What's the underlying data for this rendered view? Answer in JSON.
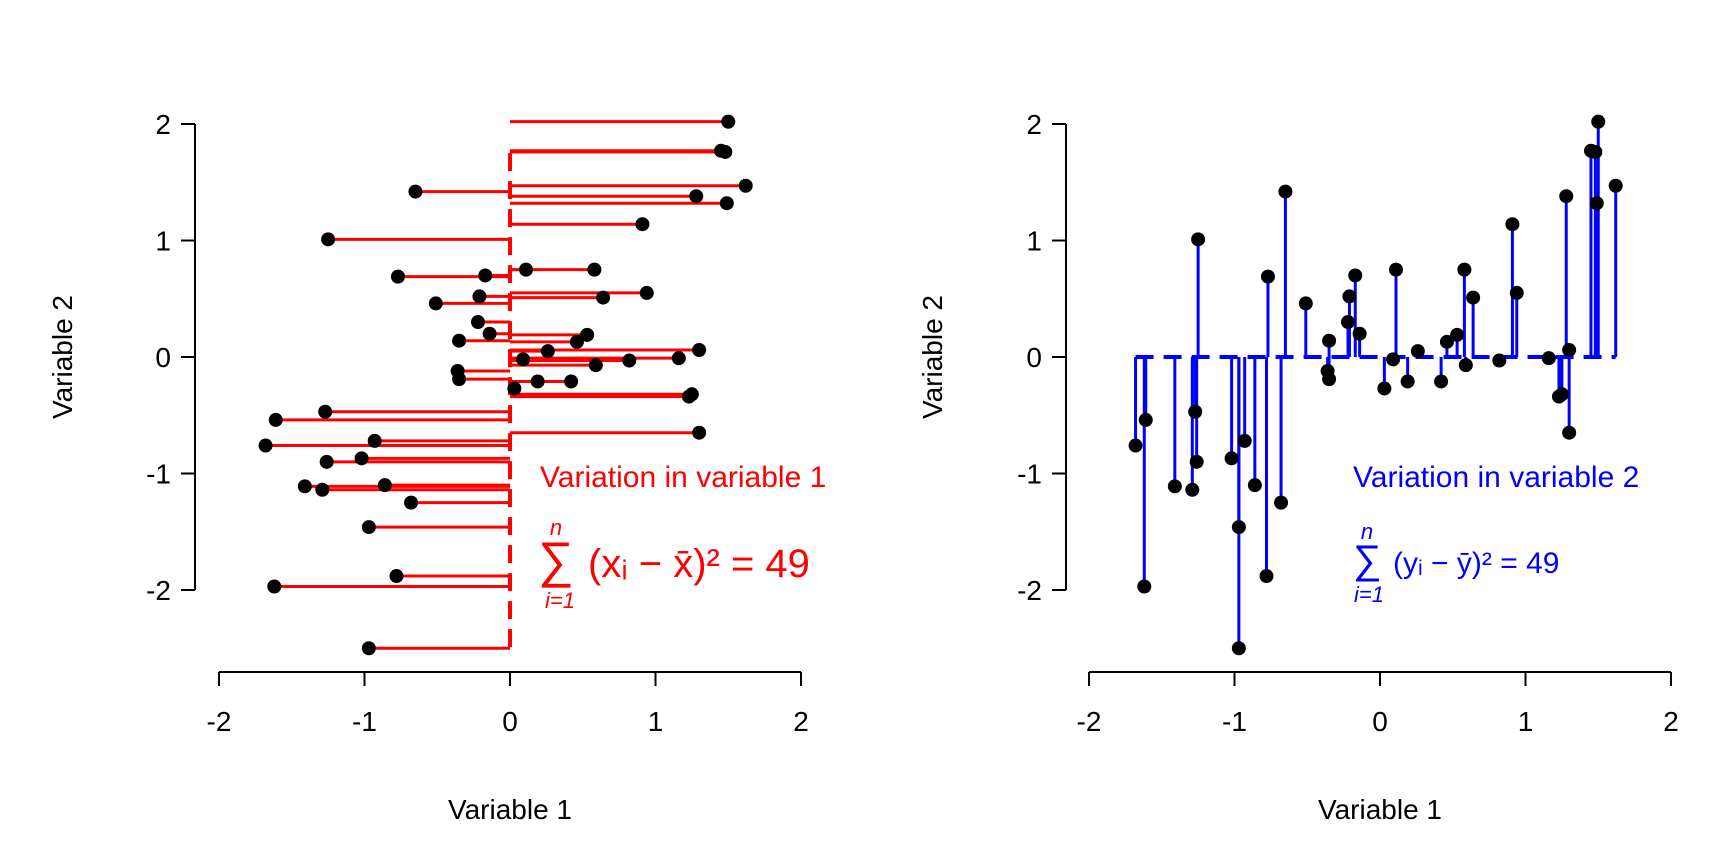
{
  "colors": {
    "left_accent": "#ff0000",
    "right_accent": "#0000ff",
    "points": "#000000",
    "axes": "#000000"
  },
  "chart_data": [
    {
      "type": "scatter",
      "title": "",
      "xlabel": "Variable 1",
      "ylabel": "Variable 2",
      "xlim": [
        -2,
        2
      ],
      "ylim": [
        -2.5,
        2.05
      ],
      "x_ticks": [
        "-2",
        "-1",
        "0",
        "1",
        "2"
      ],
      "y_ticks": [
        "-2",
        "-1",
        "0",
        "1",
        "2"
      ],
      "deviation_axis": "x",
      "mean": 0,
      "annotation": {
        "title": "Variation in variable 1",
        "sum_symbol": "∑",
        "upper": "n",
        "lower": "i=1",
        "formula": "(xᵢ − x̄)² = 49"
      },
      "points": [
        {
          "x": 1.5,
          "y": 2.02
        },
        {
          "x": 1.45,
          "y": 1.77
        },
        {
          "x": 1.48,
          "y": 1.76
        },
        {
          "x": 1.62,
          "y": 1.47
        },
        {
          "x": -0.65,
          "y": 1.42
        },
        {
          "x": 1.28,
          "y": 1.38
        },
        {
          "x": 1.49,
          "y": 1.32
        },
        {
          "x": 0.91,
          "y": 1.14
        },
        {
          "x": -1.25,
          "y": 1.01
        },
        {
          "x": 0.11,
          "y": 0.75
        },
        {
          "x": 0.58,
          "y": 0.75
        },
        {
          "x": -0.77,
          "y": 0.69
        },
        {
          "x": -0.17,
          "y": 0.7
        },
        {
          "x": 0.94,
          "y": 0.55
        },
        {
          "x": -0.21,
          "y": 0.52
        },
        {
          "x": 0.64,
          "y": 0.51
        },
        {
          "x": -0.51,
          "y": 0.46
        },
        {
          "x": -0.22,
          "y": 0.3
        },
        {
          "x": -0.14,
          "y": 0.2
        },
        {
          "x": 0.53,
          "y": 0.19
        },
        {
          "x": 0.46,
          "y": 0.13
        },
        {
          "x": -0.35,
          "y": 0.14
        },
        {
          "x": 1.3,
          "y": 0.06
        },
        {
          "x": 0.26,
          "y": 0.05
        },
        {
          "x": 0.09,
          "y": -0.02
        },
        {
          "x": 1.16,
          "y": -0.01
        },
        {
          "x": 0.82,
          "y": -0.03
        },
        {
          "x": 0.59,
          "y": -0.07
        },
        {
          "x": -0.36,
          "y": -0.12
        },
        {
          "x": -0.35,
          "y": -0.19
        },
        {
          "x": 0.19,
          "y": -0.21
        },
        {
          "x": 0.42,
          "y": -0.21
        },
        {
          "x": 0.03,
          "y": -0.27
        },
        {
          "x": 1.25,
          "y": -0.32
        },
        {
          "x": 1.23,
          "y": -0.34
        },
        {
          "x": -1.27,
          "y": -0.47
        },
        {
          "x": -1.61,
          "y": -0.54
        },
        {
          "x": 1.3,
          "y": -0.65
        },
        {
          "x": -0.93,
          "y": -0.72
        },
        {
          "x": -1.68,
          "y": -0.76
        },
        {
          "x": -1.02,
          "y": -0.87
        },
        {
          "x": -1.26,
          "y": -0.9
        },
        {
          "x": -0.86,
          "y": -1.1
        },
        {
          "x": -1.41,
          "y": -1.11
        },
        {
          "x": -1.29,
          "y": -1.14
        },
        {
          "x": -0.68,
          "y": -1.25
        },
        {
          "x": -0.97,
          "y": -1.46
        },
        {
          "x": -0.78,
          "y": -1.88
        },
        {
          "x": -1.62,
          "y": -1.97
        },
        {
          "x": -0.97,
          "y": -2.5
        }
      ]
    },
    {
      "type": "scatter",
      "title": "",
      "xlabel": "Variable 1",
      "ylabel": "Variable 2",
      "xlim": [
        -2,
        2
      ],
      "ylim": [
        -2.5,
        2.05
      ],
      "x_ticks": [
        "-2",
        "-1",
        "0",
        "1",
        "2"
      ],
      "y_ticks": [
        "-2",
        "-1",
        "0",
        "1",
        "2"
      ],
      "deviation_axis": "y",
      "mean": 0,
      "annotation": {
        "title": "Variation in variable 2",
        "sum_symbol": "∑",
        "upper": "n",
        "lower": "i=1",
        "formula": "(yᵢ − ȳ)² = 49"
      },
      "points": [
        {
          "x": 1.5,
          "y": 2.02
        },
        {
          "x": 1.45,
          "y": 1.77
        },
        {
          "x": 1.48,
          "y": 1.76
        },
        {
          "x": 1.62,
          "y": 1.47
        },
        {
          "x": -0.65,
          "y": 1.42
        },
        {
          "x": 1.28,
          "y": 1.38
        },
        {
          "x": 1.49,
          "y": 1.32
        },
        {
          "x": 0.91,
          "y": 1.14
        },
        {
          "x": -1.25,
          "y": 1.01
        },
        {
          "x": 0.11,
          "y": 0.75
        },
        {
          "x": 0.58,
          "y": 0.75
        },
        {
          "x": -0.77,
          "y": 0.69
        },
        {
          "x": -0.17,
          "y": 0.7
        },
        {
          "x": 0.94,
          "y": 0.55
        },
        {
          "x": -0.21,
          "y": 0.52
        },
        {
          "x": 0.64,
          "y": 0.51
        },
        {
          "x": -0.51,
          "y": 0.46
        },
        {
          "x": -0.22,
          "y": 0.3
        },
        {
          "x": -0.14,
          "y": 0.2
        },
        {
          "x": 0.53,
          "y": 0.19
        },
        {
          "x": 0.46,
          "y": 0.13
        },
        {
          "x": -0.35,
          "y": 0.14
        },
        {
          "x": 1.3,
          "y": 0.06
        },
        {
          "x": 0.26,
          "y": 0.05
        },
        {
          "x": 0.09,
          "y": -0.02
        },
        {
          "x": 1.16,
          "y": -0.01
        },
        {
          "x": 0.82,
          "y": -0.03
        },
        {
          "x": 0.59,
          "y": -0.07
        },
        {
          "x": -0.36,
          "y": -0.12
        },
        {
          "x": -0.35,
          "y": -0.19
        },
        {
          "x": 0.19,
          "y": -0.21
        },
        {
          "x": 0.42,
          "y": -0.21
        },
        {
          "x": 0.03,
          "y": -0.27
        },
        {
          "x": 1.25,
          "y": -0.32
        },
        {
          "x": 1.23,
          "y": -0.34
        },
        {
          "x": -1.27,
          "y": -0.47
        },
        {
          "x": -1.61,
          "y": -0.54
        },
        {
          "x": 1.3,
          "y": -0.65
        },
        {
          "x": -0.93,
          "y": -0.72
        },
        {
          "x": -1.68,
          "y": -0.76
        },
        {
          "x": -1.02,
          "y": -0.87
        },
        {
          "x": -1.26,
          "y": -0.9
        },
        {
          "x": -0.86,
          "y": -1.1
        },
        {
          "x": -1.41,
          "y": -1.11
        },
        {
          "x": -1.29,
          "y": -1.14
        },
        {
          "x": -0.68,
          "y": -1.25
        },
        {
          "x": -0.97,
          "y": -1.46
        },
        {
          "x": -0.78,
          "y": -1.88
        },
        {
          "x": -1.62,
          "y": -1.97
        },
        {
          "x": -0.97,
          "y": -2.5
        }
      ]
    }
  ]
}
